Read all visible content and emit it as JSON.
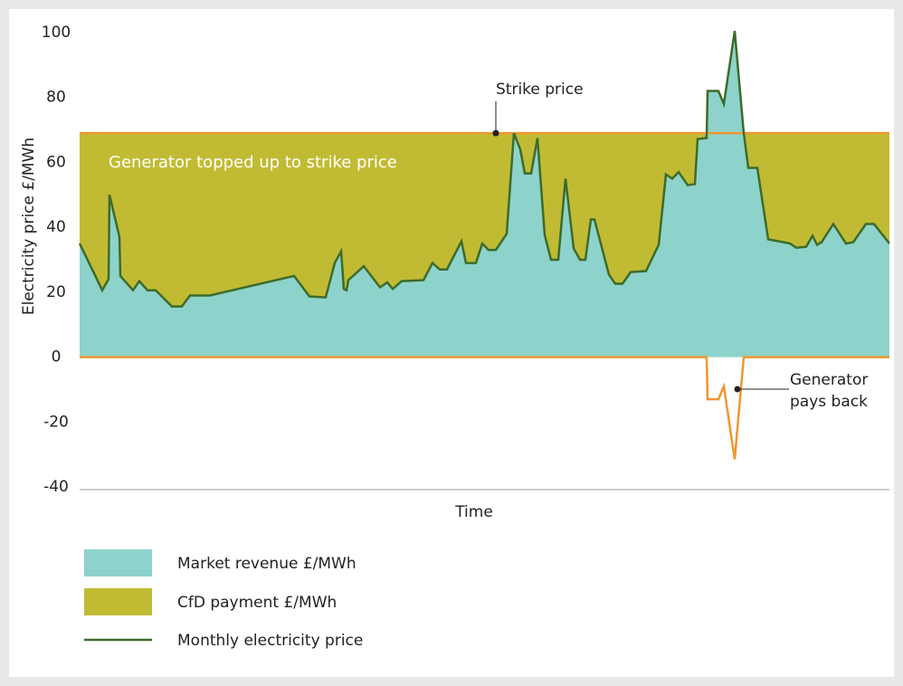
{
  "chart_data": {
    "type": "area",
    "y_label": "Electricity price £/MWh",
    "x_label": "Time",
    "annotations": {
      "strike": "Strike price",
      "top_up": "Generator topped up to strike price",
      "pay_back_1": "Generator",
      "pay_back_2": "pays back"
    },
    "strike_price": 69,
    "strike_color": "#f0962f",
    "areas": [
      {
        "name": "Market revenue £/MWh",
        "color": "#8dd3cb"
      },
      {
        "name": "CfD payment £/MWh",
        "color": "#c1bb34"
      }
    ],
    "x": [
      0,
      25,
      32,
      33,
      44,
      45,
      59,
      66,
      75,
      84,
      102,
      113,
      122,
      144,
      237,
      254,
      272,
      282,
      289,
      292,
      295,
      297,
      314,
      332,
      340,
      346,
      356,
      380,
      390,
      398,
      406,
      422,
      427,
      438,
      445,
      452,
      460,
      472,
      480,
      487,
      492,
      499,
      506,
      514,
      521,
      529,
      537,
      546,
      553,
      559,
      565,
      569,
      585,
      592,
      600,
      609,
      626,
      640,
      648,
      655,
      662,
      672,
      680,
      683,
      693,
      694,
      706,
      712,
      724,
      734,
      739,
      749,
      761,
      785,
      792,
      803,
      810,
      815,
      820,
      833,
      847,
      855,
      869,
      878,
      895
    ],
    "xlim": [
      0,
      895
    ],
    "series": [
      {
        "name": "Monthly electricity price",
        "color": "#3d6b2a",
        "values": [
          35,
          20.6,
          24,
          50,
          37,
          25,
          20.6,
          23.4,
          20.6,
          20.6,
          15.6,
          15.6,
          19,
          19,
          25,
          18.7,
          18.4,
          29,
          32.6,
          21,
          20.6,
          23.7,
          28,
          21.5,
          23,
          21,
          23.4,
          23.7,
          29,
          27,
          27,
          35.7,
          29,
          29,
          35,
          33,
          33,
          38,
          69,
          64,
          56.6,
          56.6,
          67.5,
          37.6,
          30,
          30,
          55,
          33.5,
          30,
          30,
          42.4,
          42.4,
          25.4,
          22.6,
          22.6,
          26.2,
          26.5,
          34.6,
          56.3,
          55,
          57,
          53,
          53.3,
          67.2,
          67.5,
          82,
          82,
          78,
          100.5,
          69,
          58.3,
          58.3,
          36.3,
          35,
          33.7,
          34,
          37.4,
          34.6,
          35.4,
          41,
          35,
          35.4,
          41,
          41,
          35
        ]
      }
    ],
    "ylim": [
      -40,
      100
    ],
    "yticks": [
      -40,
      -20,
      0,
      20,
      40,
      60,
      80,
      100
    ]
  }
}
